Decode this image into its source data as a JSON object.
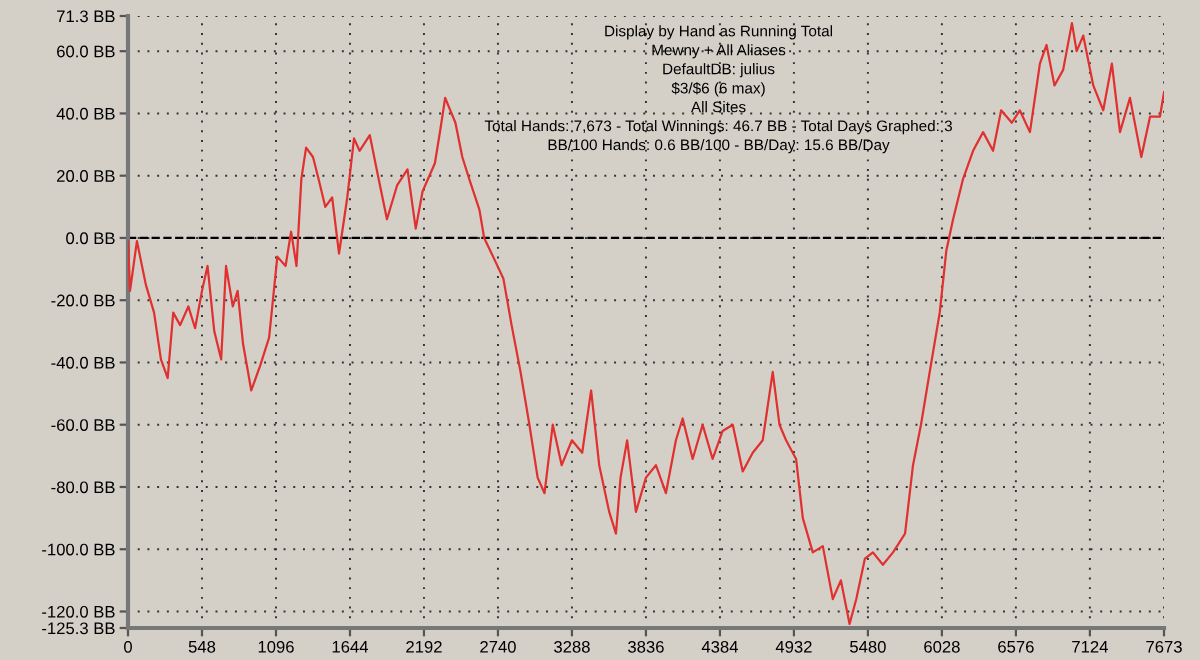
{
  "chart_data": {
    "type": "line",
    "annotations": [
      "Display by Hand as Running Total",
      "Mewny + All Aliases",
      "DefaultDB: julius",
      "$3/$6 (6 max)",
      "All Sites",
      "Total Hands: 7,673 - Total Winnings: 46.7 BB - Total Days Graphed: 3",
      "BB/100 Hands: 0.6 BB/100 - BB/Day: 15.6 BB/Day"
    ],
    "series": [
      {
        "color": "#e03030",
        "x": [
          0,
          15,
          66,
          132,
          193,
          244,
          294,
          335,
          386,
          447,
          497,
          548,
          589,
          639,
          690,
          726,
          776,
          812,
          852,
          913,
          979,
          1045,
          1106,
          1167,
          1208,
          1248,
          1284,
          1319,
          1370,
          1411,
          1461,
          1512,
          1563,
          1624,
          1674,
          1715,
          1791,
          1842,
          1918,
          1994,
          2070,
          2131,
          2182,
          2273,
          2314,
          2349,
          2425,
          2476,
          2527,
          2603,
          2638,
          2704,
          2780,
          2841,
          2907,
          2973,
          3034,
          3085,
          3146,
          3212,
          3288,
          3364,
          3430,
          3490,
          3564,
          3614,
          3648,
          3697,
          3762,
          3836,
          3910,
          3984,
          4058,
          4108,
          4182,
          4256,
          4330,
          4404,
          4479,
          4553,
          4627,
          4701,
          4775,
          4825,
          4874,
          4948,
          4998,
          5072,
          5146,
          5220,
          5280,
          5344,
          5394,
          5458,
          5517,
          5591,
          5666,
          5755,
          5814,
          5873,
          5938,
          6012,
          6061,
          6111,
          6185,
          6259,
          6333,
          6407,
          6467,
          6546,
          6605,
          6680,
          6754,
          6803,
          6862,
          6926,
          6991,
          7026,
          7075,
          7149,
          7223,
          7287,
          7347,
          7421,
          7505,
          7570,
          7643,
          7673
        ],
        "values": [
          -1,
          -17,
          -1,
          -15,
          -24,
          -39,
          -45,
          -24,
          -28,
          -22,
          -29,
          -17,
          -9,
          -30,
          -39,
          -9,
          -22,
          -17,
          -34,
          -49,
          -41,
          -32,
          -6,
          -9,
          2,
          -9,
          19,
          29,
          26,
          19,
          10,
          13,
          -5,
          13,
          32,
          28,
          33,
          22,
          6,
          17,
          22,
          3,
          15,
          24,
          35,
          45,
          37,
          26,
          19,
          9,
          0,
          -6,
          -13,
          -28,
          -43,
          -60,
          -77,
          -82,
          -60,
          -73,
          -65,
          -69,
          -49,
          -73,
          -88,
          -95,
          -77,
          -65,
          -88,
          -77,
          -73,
          -82,
          -65,
          -58,
          -71,
          -60,
          -71,
          -62,
          -60,
          -75,
          -69,
          -65,
          -43,
          -60,
          -65,
          -71,
          -90,
          -101,
          -99,
          -116,
          -110,
          -124,
          -116,
          -103,
          -101,
          -105,
          -101,
          -95,
          -73,
          -60,
          -43,
          -24,
          -4,
          6,
          19,
          28,
          34,
          28,
          41,
          37,
          41,
          34,
          56,
          62,
          49,
          54,
          69,
          60,
          65,
          49,
          41,
          56,
          34,
          45,
          26,
          39,
          39,
          46.7
        ]
      }
    ],
    "xlim": [
      0,
      7673
    ],
    "ylim": [
      -125.3,
      71.3
    ],
    "xticks": [
      0,
      548,
      1096,
      1644,
      2192,
      2740,
      3288,
      3836,
      4384,
      4932,
      5480,
      6028,
      6576,
      7124,
      7673
    ],
    "yticks": [
      {
        "value": 71.3,
        "label": "71.3 BB"
      },
      {
        "value": 60,
        "label": "60.0 BB"
      },
      {
        "value": 40,
        "label": "40.0 BB"
      },
      {
        "value": 20,
        "label": "20.0 BB"
      },
      {
        "value": 0,
        "label": "0.0 BB"
      },
      {
        "value": -20,
        "label": "-20.0 BB"
      },
      {
        "value": -40,
        "label": "-40.0 BB"
      },
      {
        "value": -60,
        "label": "-60.0 BB"
      },
      {
        "value": -80,
        "label": "-80.0 BB"
      },
      {
        "value": -100,
        "label": "-100.0 BB"
      },
      {
        "value": -120,
        "label": "-120.0 BB"
      },
      {
        "value": -125.3,
        "label": "-125.3 BB"
      }
    ],
    "ref_lines": [
      {
        "axis": "y",
        "value": 0,
        "color": "#000000",
        "line_style": "dashed"
      }
    ],
    "grid": true,
    "line_style": "solid",
    "marker": "none"
  }
}
